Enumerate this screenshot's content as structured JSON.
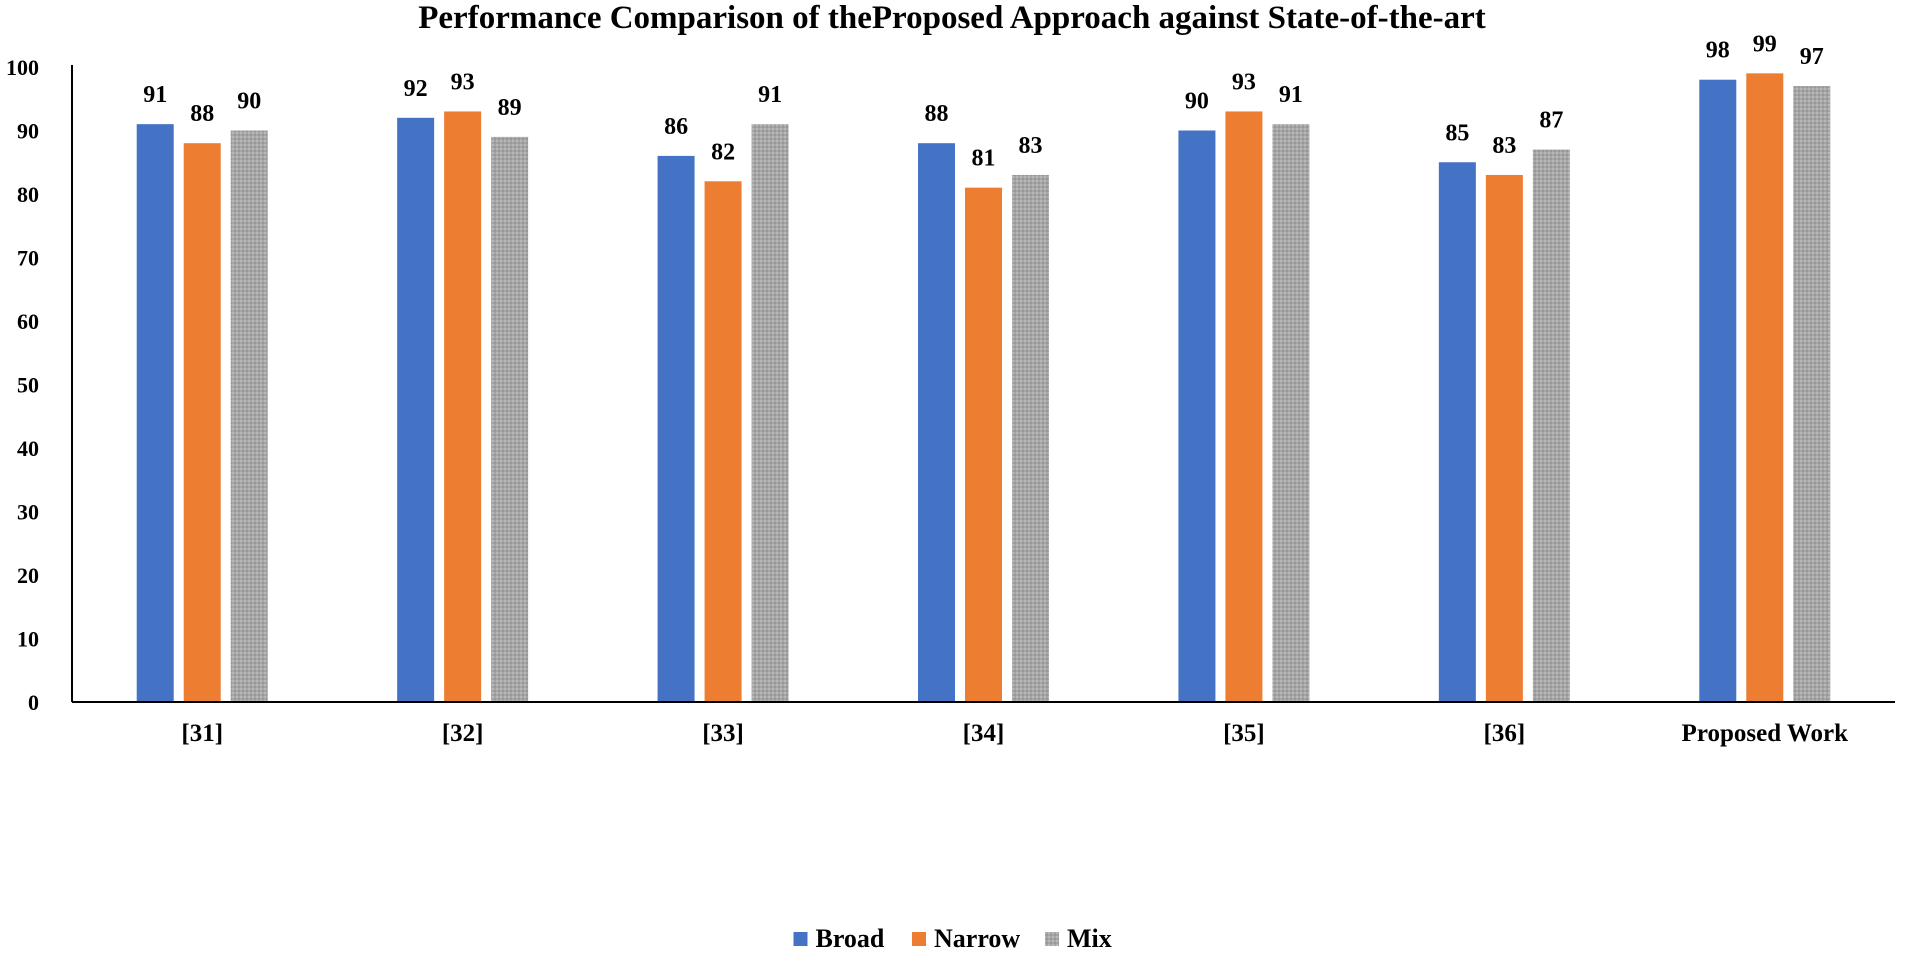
{
  "chart_data": {
    "type": "bar",
    "title": "Performance Comparison of theProposed Approach against State-of-the-art",
    "xlabel": "",
    "ylabel": "",
    "ylim": [
      0,
      100
    ],
    "yticks": [
      0,
      10,
      20,
      30,
      40,
      50,
      60,
      70,
      80,
      90,
      100
    ],
    "grid": false,
    "legend_position": "bottom-center",
    "categories": [
      "[31]",
      "[32]",
      "[33]",
      "[34]",
      "[35]",
      "[36]",
      "Proposed Work"
    ],
    "series": [
      {
        "name": "Broad",
        "color": "#4472C4",
        "values": [
          91,
          92,
          86,
          88,
          90,
          85,
          98
        ]
      },
      {
        "name": "Narrow",
        "color": "#ED7D31",
        "values": [
          88,
          93,
          82,
          81,
          93,
          83,
          99
        ]
      },
      {
        "name": "Mix",
        "color": "#A5A5A5",
        "values": [
          90,
          89,
          91,
          83,
          91,
          87,
          97
        ]
      }
    ]
  }
}
